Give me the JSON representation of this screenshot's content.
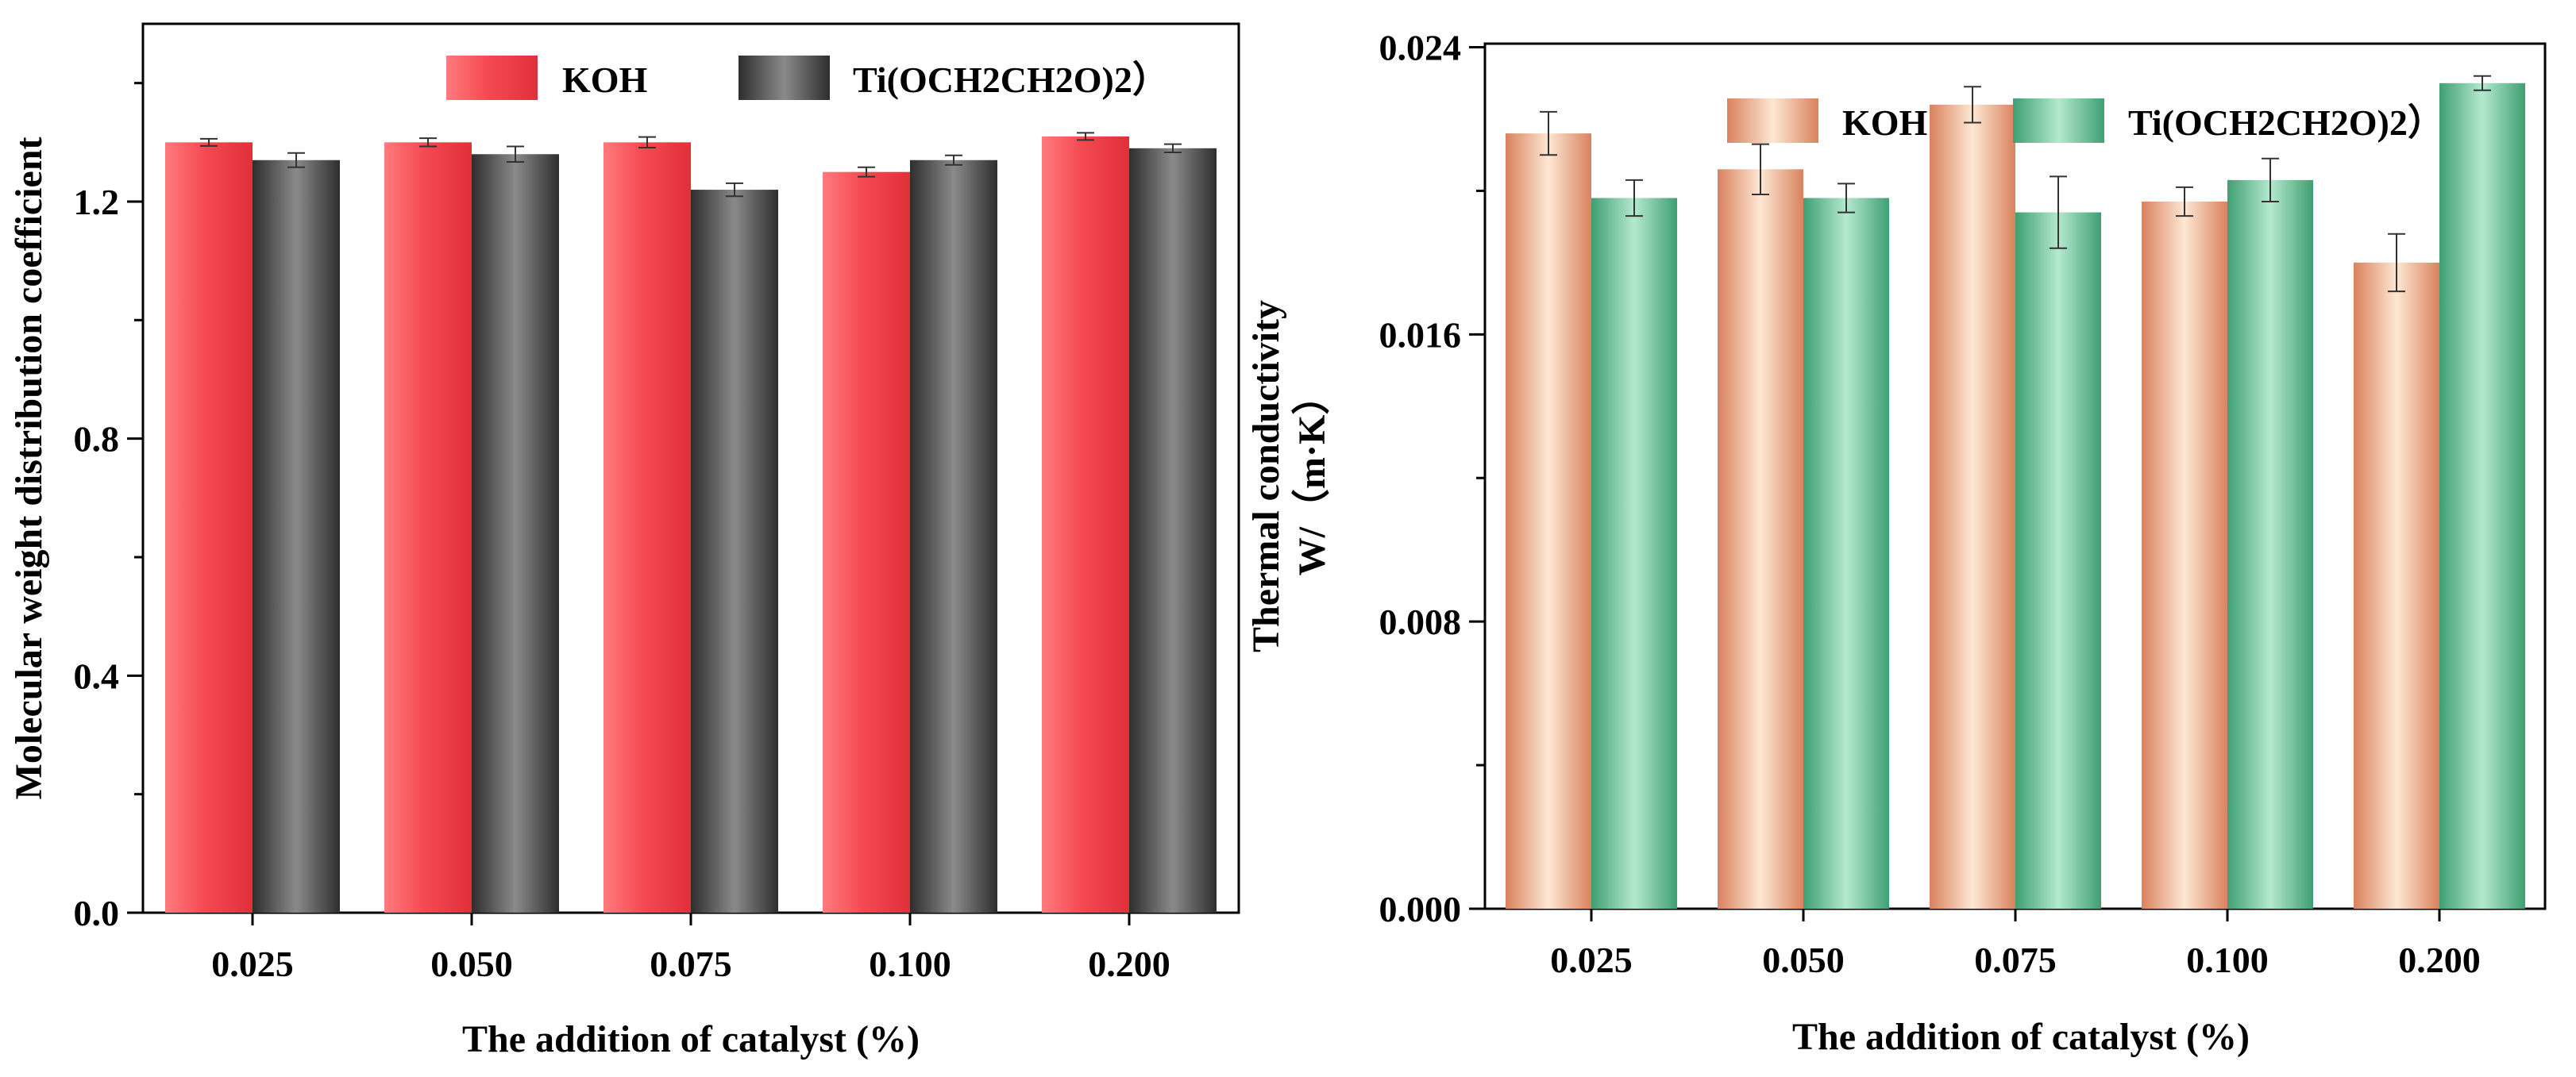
{
  "chart_data": [
    {
      "type": "bar",
      "title": "",
      "xlabel": "The addition of catalyst (%)",
      "ylabel": "Molecular weight distribution coefficient",
      "ylabel_line2": "",
      "categories": [
        "0.025",
        "0.050",
        "0.075",
        "0.100",
        "0.200"
      ],
      "ylim": [
        0,
        1.5
      ],
      "yticks": [
        0.0,
        0.4,
        0.8,
        1.2
      ],
      "ytick_labels": [
        "0.0",
        "0.4",
        "0.8",
        "1.2"
      ],
      "legend_position": "top-right",
      "series": [
        {
          "name": "KOH",
          "legend_label": "KOH",
          "color": "#f03c44",
          "style": "red",
          "values": [
            1.3,
            1.3,
            1.3,
            1.25,
            1.31
          ],
          "errors": [
            0.006,
            0.007,
            0.009,
            0.008,
            0.006
          ]
        },
        {
          "name": "Ti(OCH2CH2O)2",
          "legend_label": "Ti(OCH2CH2O)2）",
          "color": "#555555",
          "style": "gray",
          "values": [
            1.27,
            1.28,
            1.22,
            1.27,
            1.29
          ],
          "errors": [
            0.012,
            0.013,
            0.011,
            0.008,
            0.007
          ]
        }
      ]
    },
    {
      "type": "bar",
      "title": "",
      "xlabel": "The addition of catalyst (%)",
      "ylabel": "Thermal conductivity",
      "ylabel_line2": "W/（m·K）",
      "categories": [
        "0.025",
        "0.050",
        "0.075",
        "0.100",
        "0.200"
      ],
      "ylim": [
        0,
        0.0241
      ],
      "yticks": [
        0.0,
        0.008,
        0.016,
        0.024
      ],
      "ytick_labels": [
        "0.000",
        "0.008",
        "0.016",
        "0.024"
      ],
      "legend_position": "top-right",
      "series": [
        {
          "name": "KOH",
          "legend_label": "KOH",
          "color": "#e8a683",
          "style": "peach",
          "values": [
            0.0216,
            0.0206,
            0.0224,
            0.0197,
            0.018
          ],
          "errors": [
            0.0006,
            0.0007,
            0.0005,
            0.0004,
            0.0008
          ]
        },
        {
          "name": "Ti(OCH2CH2O)2",
          "legend_label": "Ti(OCH2CH2O)2）",
          "color": "#4fb383",
          "style": "green",
          "values": [
            0.0198,
            0.0198,
            0.0194,
            0.0203,
            0.023
          ],
          "errors": [
            0.0005,
            0.0004,
            0.001,
            0.0006,
            0.0002
          ]
        }
      ]
    }
  ]
}
